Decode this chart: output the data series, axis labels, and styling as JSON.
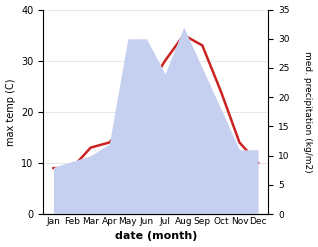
{
  "months": [
    "Jan",
    "Feb",
    "Mar",
    "Apr",
    "May",
    "Jun",
    "Jul",
    "Aug",
    "Sep",
    "Oct",
    "Nov",
    "Dec"
  ],
  "temperature": [
    9,
    9,
    13,
    14,
    18,
    24,
    30,
    35,
    33,
    24,
    14,
    10
  ],
  "precipitation": [
    8,
    9,
    10,
    12,
    30,
    30,
    24,
    32,
    25,
    18,
    11,
    11
  ],
  "temp_color": "#cc2222",
  "precip_color": "#c5cff0",
  "ylim_temp": [
    0,
    40
  ],
  "ylim_precip": [
    0,
    35
  ],
  "yticks_temp": [
    0,
    10,
    20,
    30,
    40
  ],
  "yticks_precip": [
    0,
    5,
    10,
    15,
    20,
    25,
    30,
    35
  ],
  "xlabel": "date (month)",
  "ylabel_left": "max temp (C)",
  "ylabel_right": "med. precipitation (kg/m2)",
  "bg_color": "#ffffff"
}
